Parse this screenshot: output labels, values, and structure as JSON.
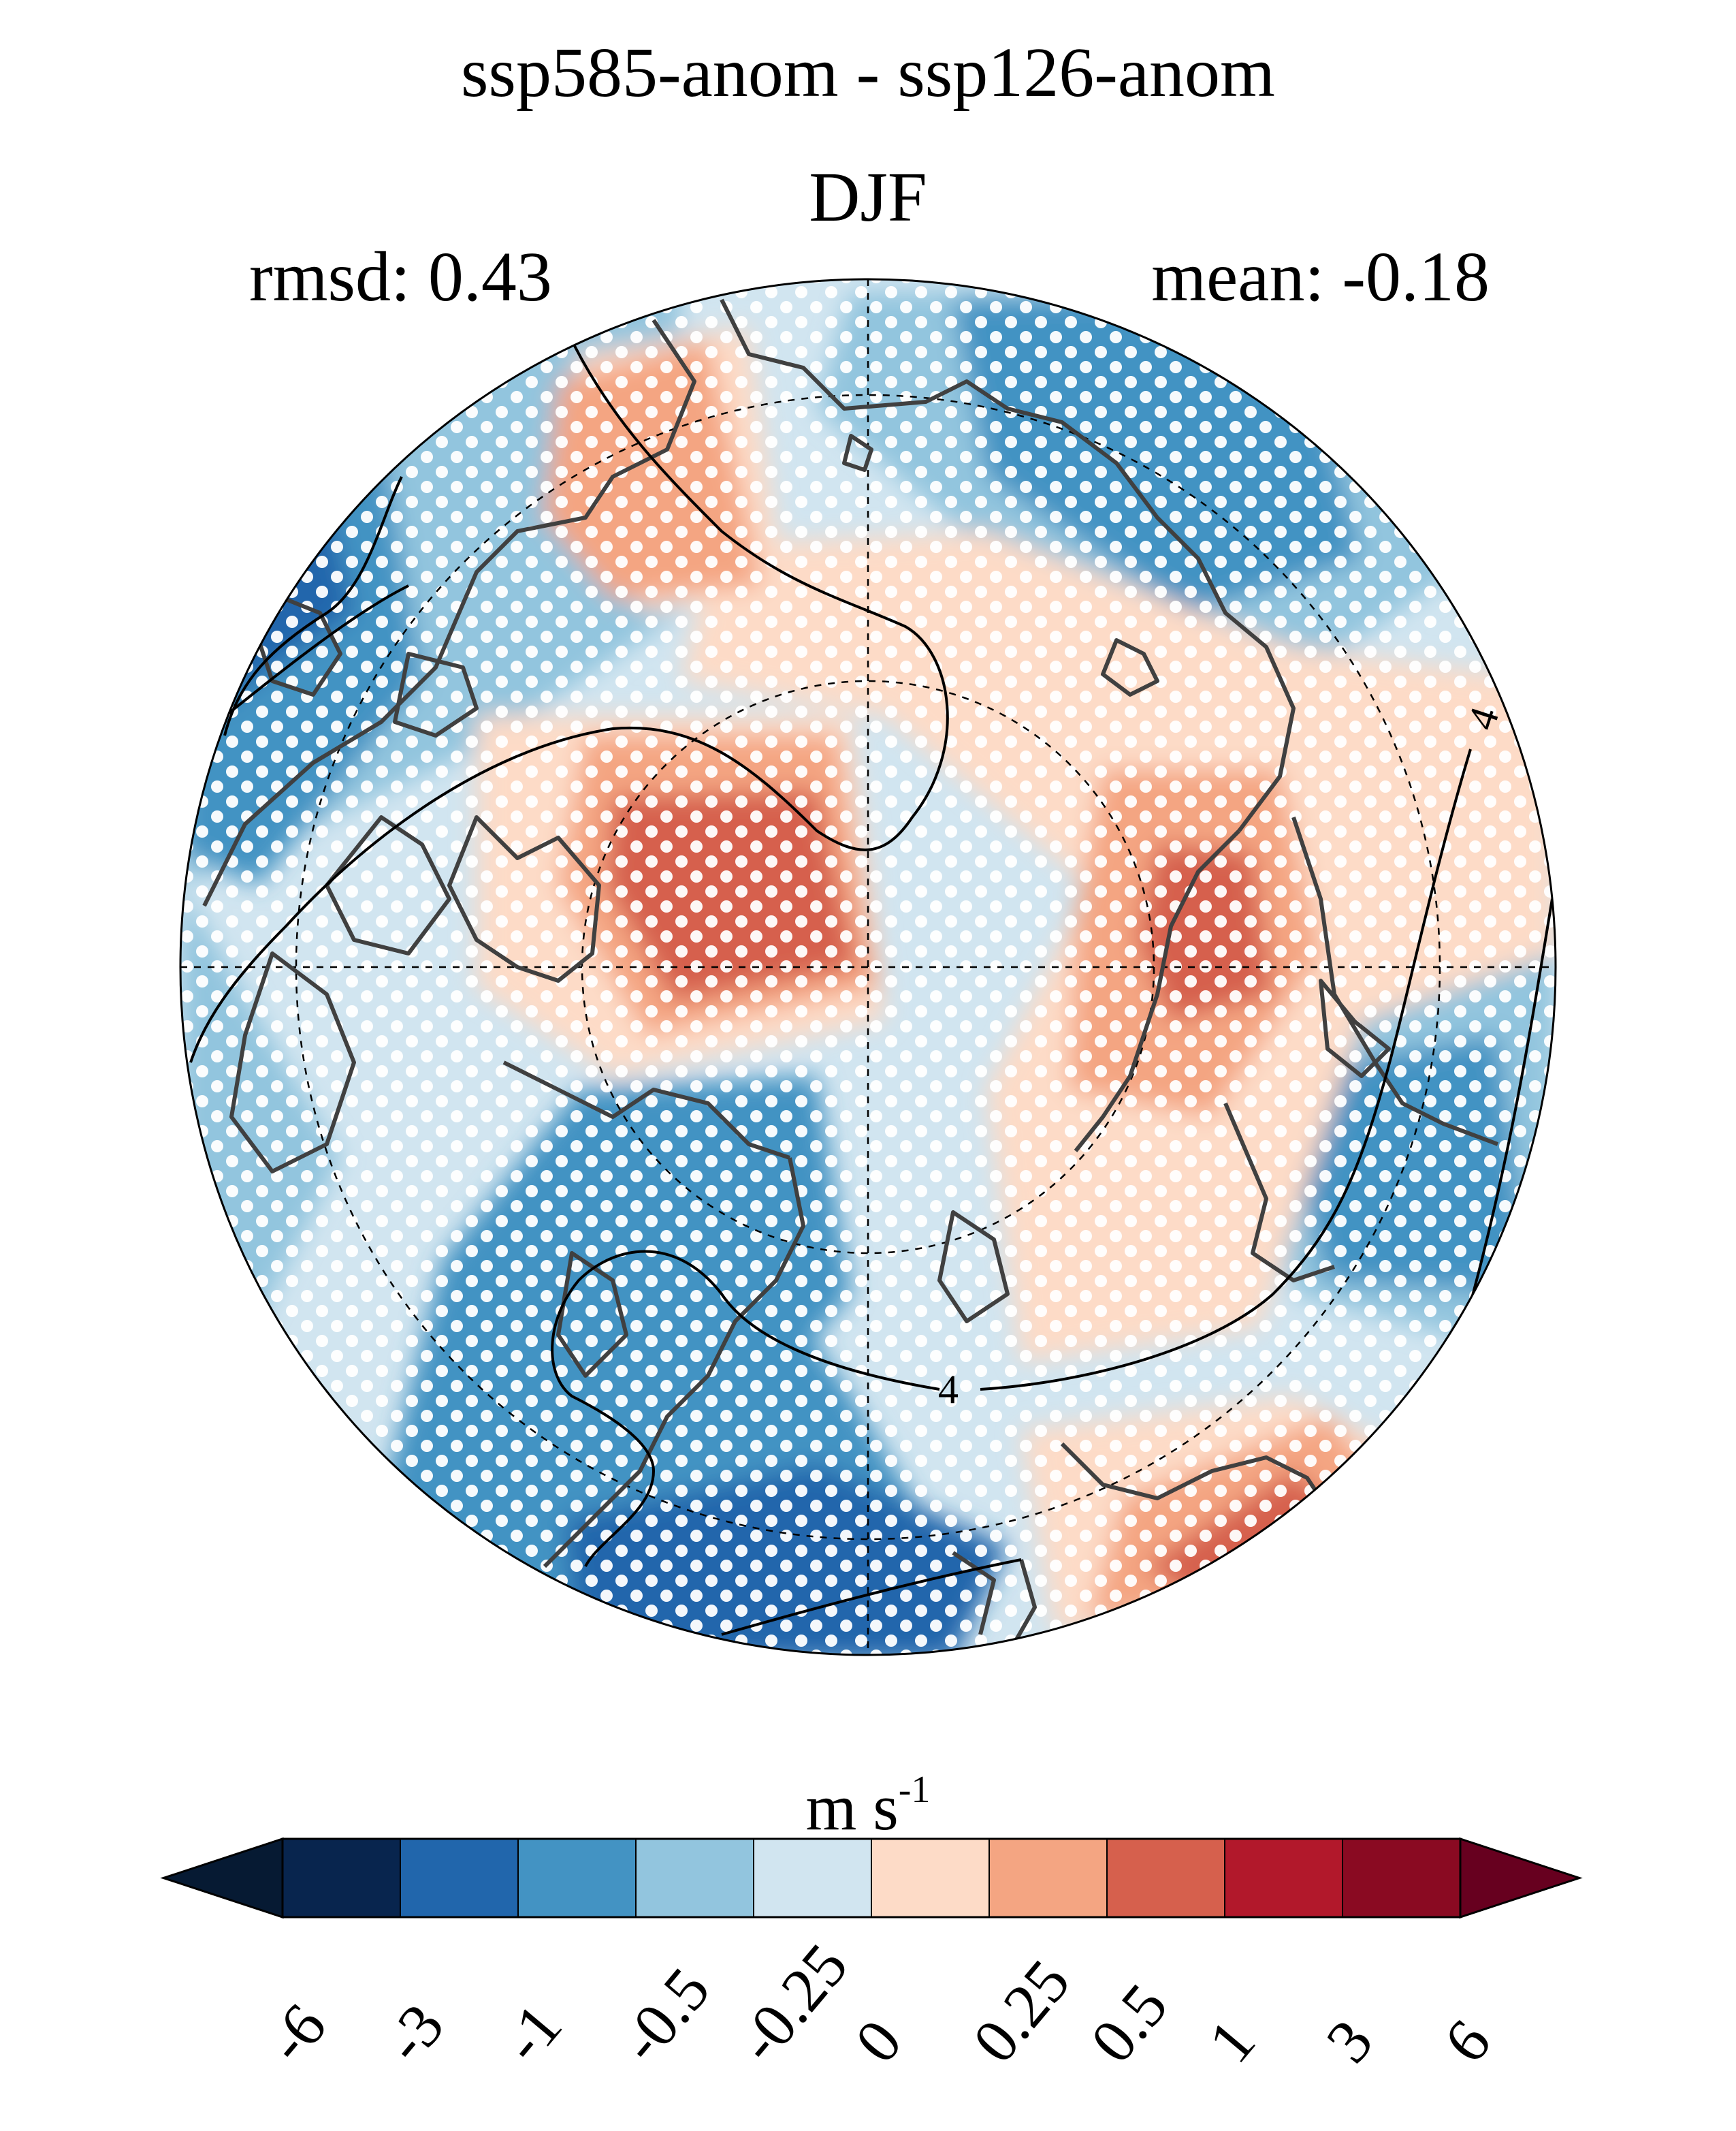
{
  "figure": {
    "title": "ssp585-anom - ssp126-anom",
    "season": "DJF",
    "rmsd_label": "rmsd: 0.43",
    "mean_label": "mean: -0.18",
    "units_base": "m s",
    "units_exponent": "-1",
    "contour_label": "4"
  },
  "map": {
    "projection": "north-polar-stereographic",
    "stippling": "white dots mark significant grid points",
    "overlay": "black contour lines of climatology"
  },
  "colorbar": {
    "levels": [
      "-6",
      "-3",
      "-1",
      "-0.5",
      "-0.25",
      "0",
      "0.25",
      "0.5",
      "1",
      "3",
      "6"
    ],
    "colors": [
      "#08254e",
      "#2166ac",
      "#4393c3",
      "#92c5de",
      "#d1e5f0",
      "#fddbc7",
      "#f4a582",
      "#d6604d",
      "#b2182b",
      "#8a0a22"
    ],
    "extend_low_color": "#061a33",
    "extend_high_color": "#67001f"
  },
  "palette": {
    "coast": "#404040",
    "stipple": "#ffffff"
  }
}
